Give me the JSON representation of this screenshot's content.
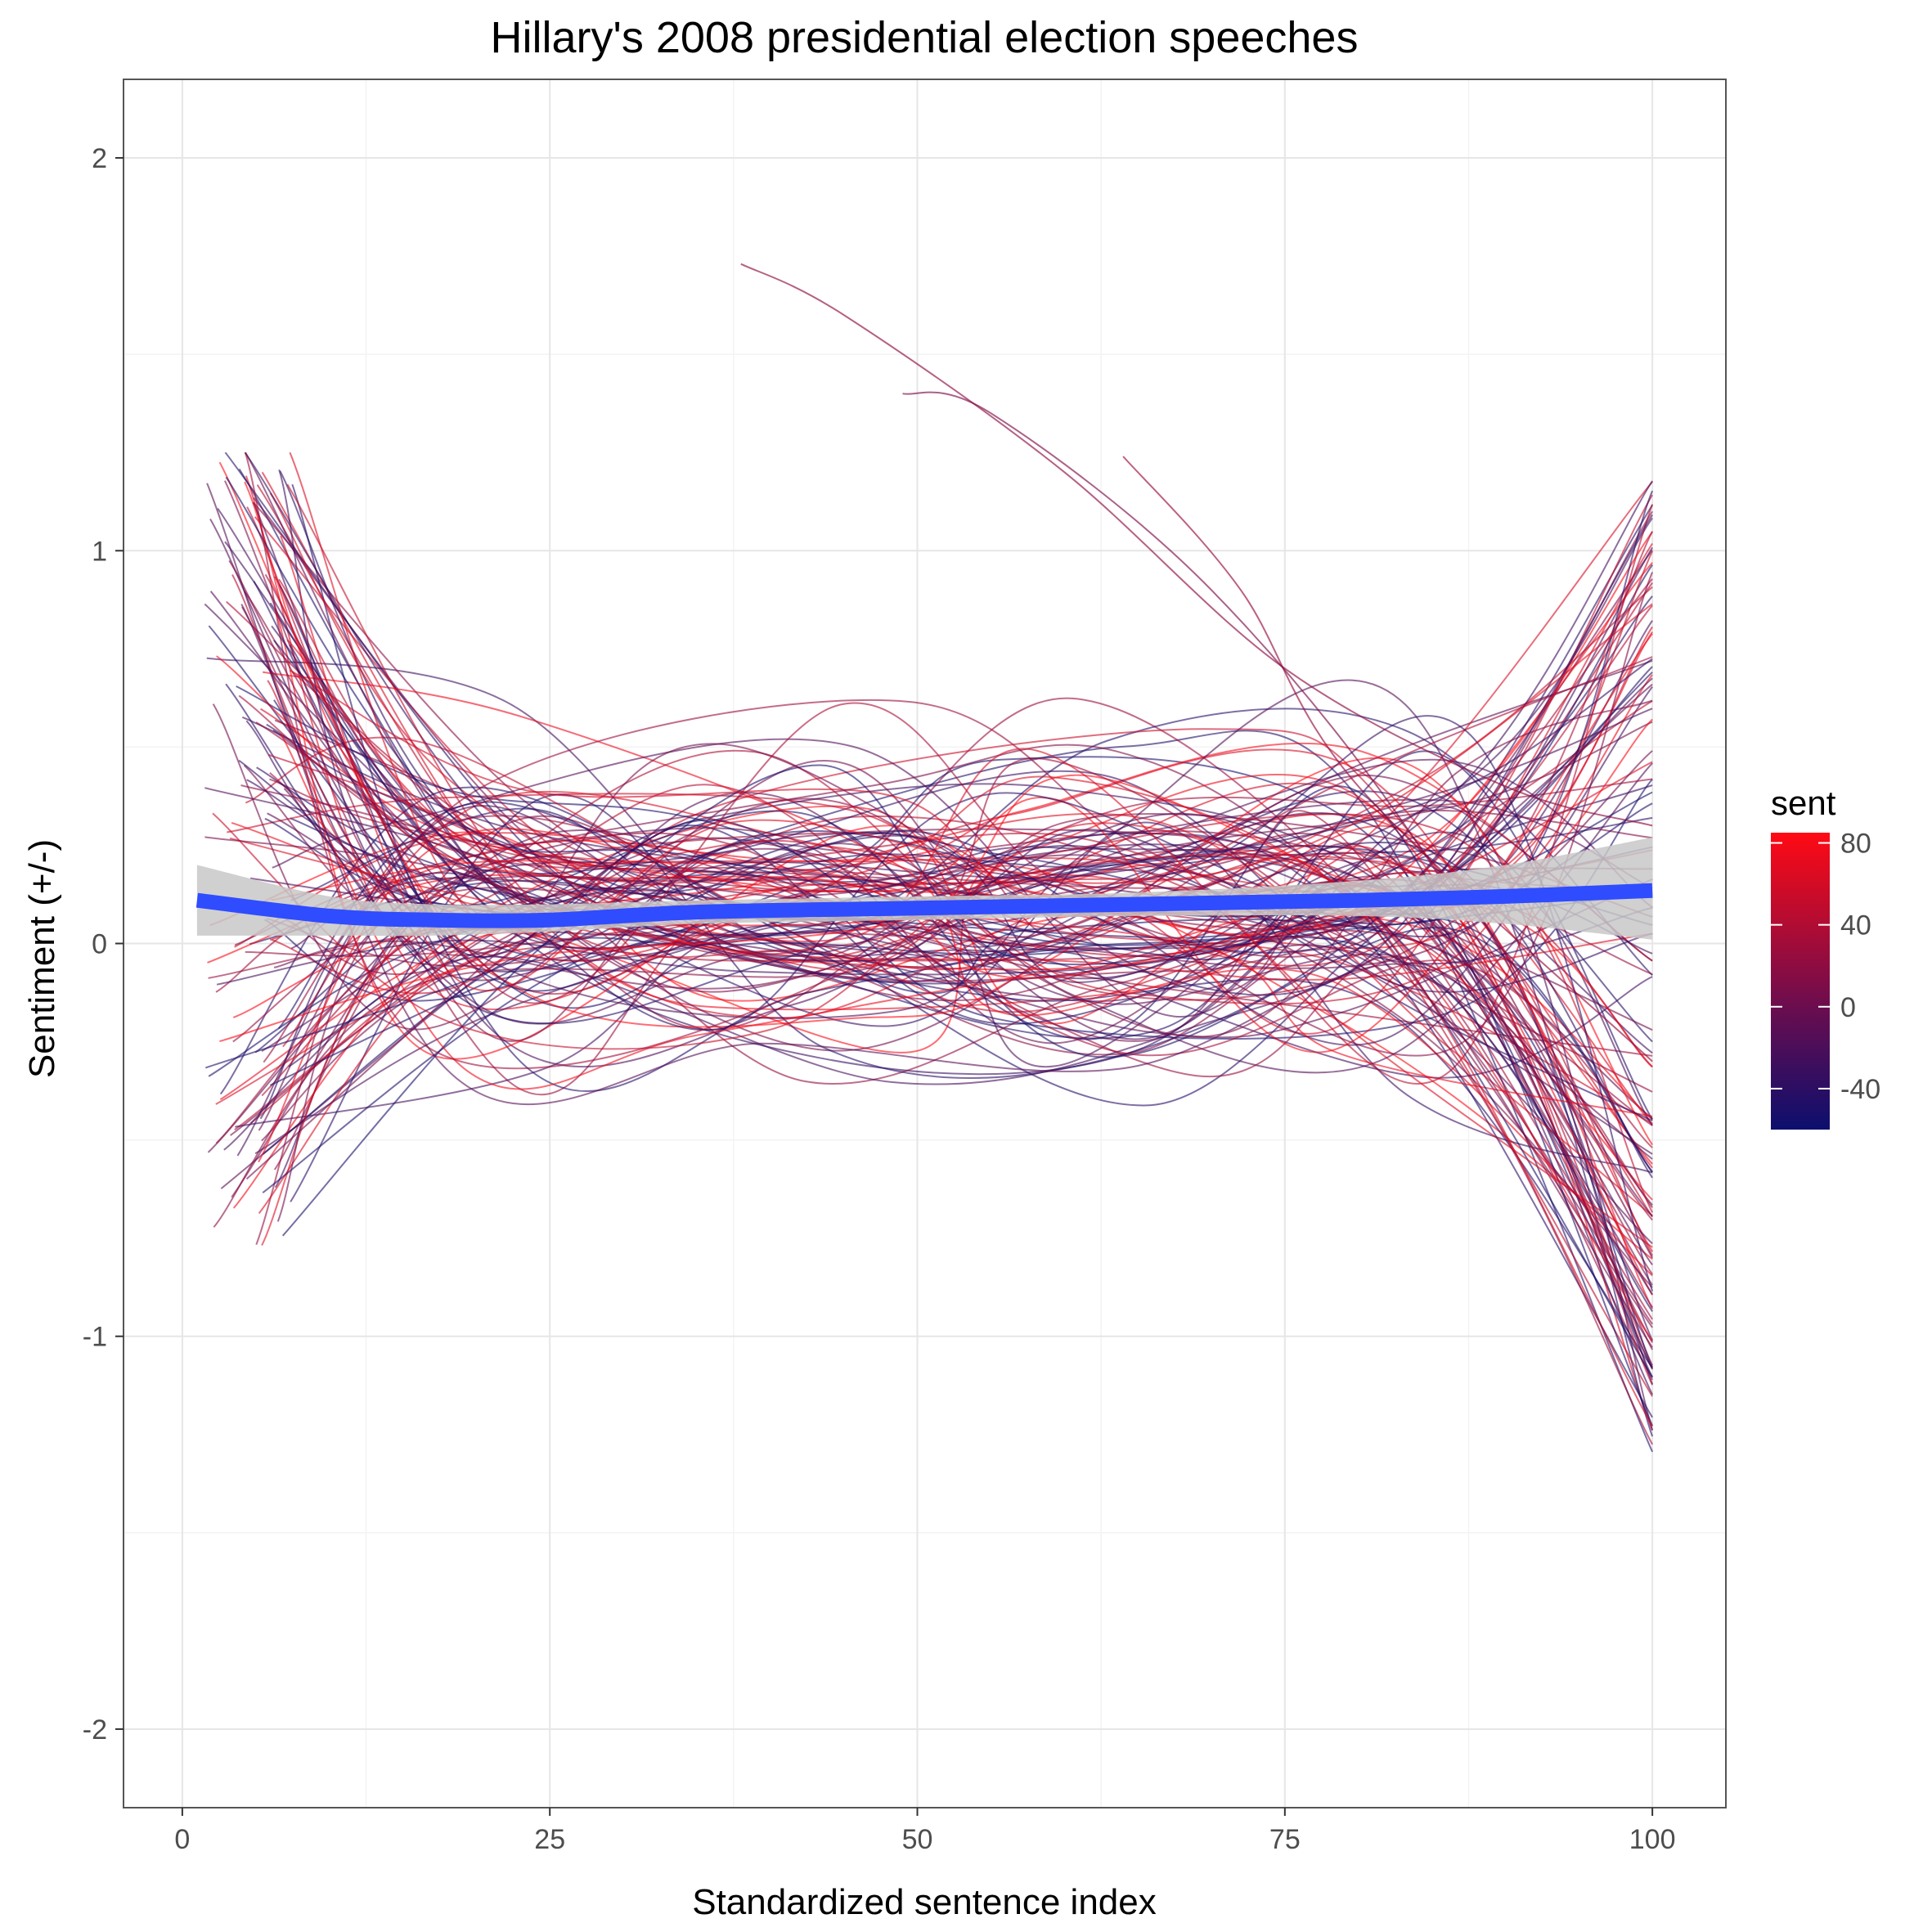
{
  "chart_data": {
    "type": "line",
    "title": "Hillary's 2008 presidential election speeches",
    "xlabel": "Standardized sentence index",
    "ylabel": "Sentiment (+/-)",
    "xlim": [
      -4,
      105
    ],
    "ylim": [
      -2.2,
      2.2
    ],
    "x_ticks": [
      0,
      25,
      50,
      75,
      100
    ],
    "x_tick_labels": [
      "0",
      "25",
      "50",
      "75",
      "100"
    ],
    "y_ticks": [
      2,
      1,
      0,
      -1,
      -2
    ],
    "y_tick_labels": [
      "2",
      "1",
      "0",
      "-1",
      "-2"
    ],
    "grid": true,
    "legend": {
      "title": "sent",
      "placement": "right",
      "type": "gradient",
      "range": [
        -60,
        85
      ],
      "ticks": [
        80,
        40,
        0,
        -40
      ],
      "tick_labels": [
        "80",
        "40",
        "0",
        "-40"
      ],
      "low_color": "#0c0f6e",
      "mid_color": "#6a0d4f",
      "high_color": "#ff0a14"
    },
    "smooth": {
      "color": "#2f4cff",
      "band_color": "#c8c8c8",
      "points": [
        {
          "x": 1,
          "y": 0.11,
          "lo": 0.02,
          "hi": 0.2
        },
        {
          "x": 10,
          "y": 0.07,
          "lo": 0.02,
          "hi": 0.12
        },
        {
          "x": 17,
          "y": 0.06,
          "lo": 0.02,
          "hi": 0.1
        },
        {
          "x": 25,
          "y": 0.06,
          "lo": 0.03,
          "hi": 0.1
        },
        {
          "x": 35,
          "y": 0.08,
          "lo": 0.05,
          "hi": 0.11
        },
        {
          "x": 50,
          "y": 0.09,
          "lo": 0.06,
          "hi": 0.12
        },
        {
          "x": 65,
          "y": 0.1,
          "lo": 0.07,
          "hi": 0.13
        },
        {
          "x": 80,
          "y": 0.11,
          "lo": 0.07,
          "hi": 0.16
        },
        {
          "x": 90,
          "y": 0.12,
          "lo": 0.05,
          "hi": 0.2
        },
        {
          "x": 100,
          "y": 0.135,
          "lo": 0.01,
          "hi": 0.27
        }
      ]
    },
    "series": [
      {
        "sent": 20,
        "points": [
          [
            38,
            1.73
          ],
          [
            45,
            1.6
          ],
          [
            60,
            1.2
          ],
          [
            75,
            0.7
          ],
          [
            90,
            0.4
          ],
          [
            100,
            0.3
          ]
        ],
        "x": 2.0,
        "y": 1.32
      },
      {
        "sent": 10,
        "points": [
          [
            49,
            1.4
          ],
          [
            55,
            1.35
          ],
          [
            70,
            0.9
          ],
          [
            85,
            0.2
          ],
          [
            100,
            -0.8
          ]
        ],
        "x": 3.3,
        "y": 1.34
      },
      {
        "sent": 25,
        "points": [
          [
            64,
            1.24
          ],
          [
            72,
            0.9
          ],
          [
            80,
            0.4
          ],
          [
            100,
            -0.3
          ]
        ],
        "x": 15,
        "y": 1.13
      },
      {
        "sent": 40,
        "x": 4,
        "y": 1.1
      },
      {
        "sent": 30,
        "x": 7,
        "y": 1.15
      },
      {
        "sent": 60,
        "x": 25,
        "y": 0.87
      },
      {
        "sent": -30,
        "x": 50,
        "y": -0.55
      }
    ]
  }
}
